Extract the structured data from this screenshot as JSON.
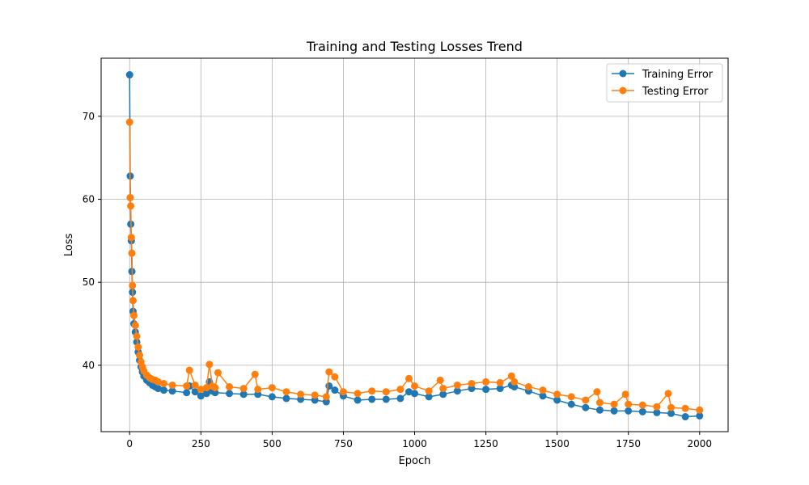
{
  "chart_data": {
    "type": "line",
    "title": "Training and Testing Losses Trend",
    "xlabel": "Epoch",
    "ylabel": "Loss",
    "xlim": [
      -100,
      2100
    ],
    "ylim": [
      32,
      77
    ],
    "x_ticks": [
      0,
      250,
      500,
      750,
      1000,
      1250,
      1500,
      1750,
      2000
    ],
    "y_ticks": [
      40,
      50,
      60,
      70
    ],
    "grid": true,
    "legend_position": "top-right",
    "markers": "circle",
    "series": [
      {
        "name": "Training Error",
        "color": "#1f77b4",
        "x": [
          0,
          2,
          4,
          6,
          8,
          10,
          12,
          15,
          20,
          25,
          30,
          35,
          40,
          45,
          50,
          60,
          70,
          80,
          90,
          100,
          120,
          150,
          200,
          210,
          230,
          250,
          270,
          280,
          290,
          300,
          350,
          400,
          450,
          500,
          550,
          600,
          650,
          690,
          700,
          720,
          750,
          800,
          850,
          900,
          950,
          980,
          1000,
          1050,
          1100,
          1150,
          1200,
          1250,
          1300,
          1340,
          1350,
          1400,
          1450,
          1500,
          1550,
          1600,
          1650,
          1700,
          1750,
          1800,
          1850,
          1900,
          1950,
          2000
        ],
        "y": [
          75.0,
          62.8,
          57.0,
          55.0,
          51.3,
          48.8,
          46.5,
          45.0,
          44.0,
          42.8,
          41.6,
          40.6,
          39.8,
          39.2,
          38.7,
          38.2,
          37.9,
          37.6,
          37.4,
          37.2,
          37.0,
          36.9,
          36.7,
          37.5,
          36.8,
          36.3,
          36.6,
          38.0,
          36.9,
          36.7,
          36.6,
          36.5,
          36.5,
          36.2,
          36.0,
          35.9,
          35.8,
          35.6,
          37.5,
          37.0,
          36.3,
          35.8,
          35.9,
          35.9,
          36.0,
          36.8,
          36.6,
          36.2,
          36.5,
          36.9,
          37.2,
          37.1,
          37.2,
          37.6,
          37.4,
          36.9,
          36.3,
          35.8,
          35.3,
          34.9,
          34.6,
          34.5,
          34.5,
          34.4,
          34.3,
          34.2,
          33.8,
          33.9
        ]
      },
      {
        "name": "Testing Error",
        "color": "#ff7f0e",
        "x": [
          0,
          2,
          4,
          6,
          8,
          10,
          12,
          15,
          20,
          25,
          30,
          35,
          40,
          45,
          50,
          60,
          70,
          80,
          90,
          100,
          120,
          150,
          200,
          210,
          230,
          250,
          270,
          280,
          290,
          300,
          310,
          350,
          400,
          440,
          450,
          500,
          550,
          600,
          650,
          690,
          700,
          720,
          750,
          800,
          850,
          900,
          950,
          980,
          1000,
          1050,
          1090,
          1100,
          1150,
          1200,
          1250,
          1300,
          1340,
          1350,
          1400,
          1450,
          1500,
          1550,
          1600,
          1640,
          1650,
          1700,
          1740,
          1750,
          1800,
          1850,
          1890,
          1900,
          1950,
          2000
        ],
        "y": [
          69.3,
          60.2,
          59.2,
          55.4,
          53.5,
          49.6,
          47.8,
          46.0,
          44.8,
          43.5,
          42.2,
          41.2,
          40.4,
          39.8,
          39.3,
          38.8,
          38.5,
          38.3,
          38.2,
          38.0,
          37.8,
          37.6,
          37.5,
          39.4,
          37.6,
          37.1,
          37.3,
          40.1,
          37.5,
          37.3,
          39.1,
          37.4,
          37.2,
          38.9,
          37.1,
          37.3,
          36.8,
          36.5,
          36.4,
          36.2,
          39.2,
          38.6,
          36.8,
          36.6,
          36.9,
          36.8,
          37.1,
          38.4,
          37.5,
          36.9,
          38.2,
          37.2,
          37.6,
          37.8,
          38.0,
          37.9,
          38.7,
          38.0,
          37.4,
          37.0,
          36.5,
          36.2,
          35.8,
          36.8,
          35.5,
          35.3,
          36.5,
          35.3,
          35.2,
          35.0,
          36.6,
          34.9,
          34.8,
          34.6
        ]
      }
    ]
  }
}
